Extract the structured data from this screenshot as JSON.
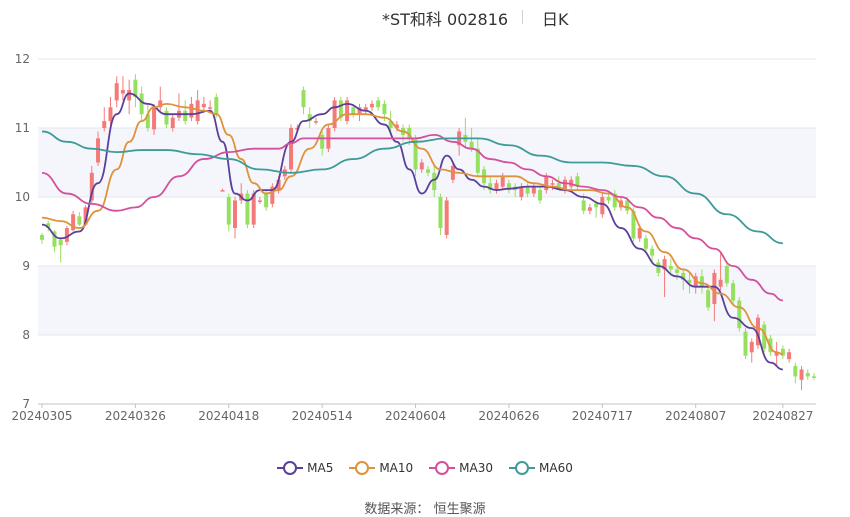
{
  "header": {
    "title": "*ST和科 002816",
    "subtitle": "日K"
  },
  "source": {
    "label": "数据来源：",
    "value": "恒生聚源"
  },
  "colors": {
    "up": "#f47a7a",
    "down": "#95e05e",
    "MA5": "#5b3f9b",
    "MA10": "#e0923b",
    "MA30": "#d4509b",
    "MA60": "#3f9a9a",
    "grid": "#e3e6ee",
    "band": "#f4f6fb"
  },
  "chart_data": {
    "type": "candlestick",
    "ylim": [
      7,
      12
    ],
    "yticks": [
      "7",
      "8",
      "9",
      "10",
      "11",
      "12"
    ],
    "xlabels": [
      "20240305",
      "20240326",
      "20240418",
      "20240514",
      "20240604",
      "20240626",
      "20240717",
      "20240807",
      "20240827"
    ],
    "xlabel_index": [
      0,
      15,
      30,
      45,
      60,
      75,
      90,
      105,
      119
    ],
    "legend": [
      "MA5",
      "MA10",
      "MA30",
      "MA60"
    ],
    "candles": [
      {
        "o": 9.45,
        "c": 9.38,
        "h": 9.48,
        "l": 9.32
      },
      {
        "o": 9.62,
        "c": 9.55,
        "h": 9.66,
        "l": 9.5
      },
      {
        "o": 9.5,
        "c": 9.28,
        "h": 9.52,
        "l": 9.2
      },
      {
        "o": 9.38,
        "c": 9.3,
        "h": 9.42,
        "l": 9.05
      },
      {
        "o": 9.35,
        "c": 9.55,
        "h": 9.58,
        "l": 9.3
      },
      {
        "o": 9.52,
        "c": 9.75,
        "h": 9.8,
        "l": 9.5
      },
      {
        "o": 9.72,
        "c": 9.6,
        "h": 9.78,
        "l": 9.58
      },
      {
        "o": 9.6,
        "c": 9.85,
        "h": 9.88,
        "l": 9.58
      },
      {
        "o": 9.95,
        "c": 10.35,
        "h": 10.45,
        "l": 9.9
      },
      {
        "o": 10.5,
        "c": 10.85,
        "h": 10.95,
        "l": 10.45
      },
      {
        "o": 11.0,
        "c": 11.1,
        "h": 11.3,
        "l": 10.95
      },
      {
        "o": 11.1,
        "c": 11.3,
        "h": 11.45,
        "l": 11.0
      },
      {
        "o": 11.4,
        "c": 11.65,
        "h": 11.75,
        "l": 11.3
      },
      {
        "o": 11.5,
        "c": 11.55,
        "h": 11.75,
        "l": 11.4
      },
      {
        "o": 11.4,
        "c": 11.55,
        "h": 11.7,
        "l": 11.2
      },
      {
        "o": 11.7,
        "c": 11.45,
        "h": 11.78,
        "l": 11.3
      },
      {
        "o": 11.5,
        "c": 11.2,
        "h": 11.6,
        "l": 11.1
      },
      {
        "o": 11.2,
        "c": 11.0,
        "h": 11.35,
        "l": 10.95
      },
      {
        "o": 10.98,
        "c": 11.3,
        "h": 11.35,
        "l": 10.9
      },
      {
        "o": 11.3,
        "c": 11.4,
        "h": 11.6,
        "l": 11.25
      },
      {
        "o": 11.25,
        "c": 11.05,
        "h": 11.3,
        "l": 11.0
      },
      {
        "o": 11.0,
        "c": 11.15,
        "h": 11.2,
        "l": 10.95
      },
      {
        "o": 11.15,
        "c": 11.25,
        "h": 11.5,
        "l": 11.1
      },
      {
        "o": 11.25,
        "c": 11.1,
        "h": 11.4,
        "l": 11.05
      },
      {
        "o": 11.15,
        "c": 11.35,
        "h": 11.45,
        "l": 11.1
      },
      {
        "o": 11.1,
        "c": 11.4,
        "h": 11.55,
        "l": 11.05
      },
      {
        "o": 11.3,
        "c": 11.35,
        "h": 11.45,
        "l": 11.25
      },
      {
        "o": 11.3,
        "c": 11.3,
        "h": 11.4,
        "l": 11.25
      },
      {
        "o": 11.45,
        "c": 11.2,
        "h": 11.5,
        "l": 11.15
      },
      {
        "o": 10.1,
        "c": 10.1,
        "h": 10.12,
        "l": 10.08
      },
      {
        "o": 10.0,
        "c": 9.6,
        "h": 10.05,
        "l": 9.5
      },
      {
        "o": 9.55,
        "c": 9.95,
        "h": 10.0,
        "l": 9.4
      },
      {
        "o": 9.95,
        "c": 10.05,
        "h": 10.2,
        "l": 9.9
      },
      {
        "o": 10.05,
        "c": 9.6,
        "h": 10.1,
        "l": 9.55
      },
      {
        "o": 9.6,
        "c": 10.05,
        "h": 10.1,
        "l": 9.55
      },
      {
        "o": 9.95,
        "c": 9.95,
        "h": 10.0,
        "l": 9.9
      },
      {
        "o": 10.05,
        "c": 9.85,
        "h": 10.1,
        "l": 9.8
      },
      {
        "o": 9.9,
        "c": 10.15,
        "h": 10.2,
        "l": 9.85
      },
      {
        "o": 10.1,
        "c": 10.25,
        "h": 10.3,
        "l": 10.05
      },
      {
        "o": 10.3,
        "c": 10.4,
        "h": 10.45,
        "l": 10.25
      },
      {
        "o": 10.4,
        "c": 11.0,
        "h": 11.05,
        "l": 10.35
      },
      {
        "o": 11.0,
        "c": 11.0,
        "h": 11.05,
        "l": 10.95
      },
      {
        "o": 11.55,
        "c": 11.3,
        "h": 11.6,
        "l": 11.2
      },
      {
        "o": 11.2,
        "c": 11.1,
        "h": 11.3,
        "l": 11.0
      },
      {
        "o": 11.1,
        "c": 11.1,
        "h": 11.15,
        "l": 11.05
      },
      {
        "o": 10.9,
        "c": 10.7,
        "h": 10.95,
        "l": 10.6
      },
      {
        "o": 10.7,
        "c": 11.0,
        "h": 11.05,
        "l": 10.65
      },
      {
        "o": 11.0,
        "c": 11.4,
        "h": 11.45,
        "l": 10.95
      },
      {
        "o": 11.4,
        "c": 11.15,
        "h": 11.45,
        "l": 11.1
      },
      {
        "o": 11.1,
        "c": 11.4,
        "h": 11.45,
        "l": 11.05
      },
      {
        "o": 11.3,
        "c": 11.2,
        "h": 11.35,
        "l": 11.15
      },
      {
        "o": 11.2,
        "c": 11.3,
        "h": 11.35,
        "l": 11.1
      },
      {
        "o": 11.25,
        "c": 11.3,
        "h": 11.35,
        "l": 11.2
      },
      {
        "o": 11.3,
        "c": 11.35,
        "h": 11.4,
        "l": 11.25
      },
      {
        "o": 11.4,
        "c": 11.3,
        "h": 11.45,
        "l": 11.25
      },
      {
        "o": 11.35,
        "c": 11.2,
        "h": 11.4,
        "l": 11.1
      },
      {
        "o": 11.1,
        "c": 11.0,
        "h": 11.25,
        "l": 10.9
      },
      {
        "o": 11.0,
        "c": 11.05,
        "h": 11.1,
        "l": 10.95
      },
      {
        "o": 11.0,
        "c": 10.9,
        "h": 11.05,
        "l": 10.8
      },
      {
        "o": 11.0,
        "c": 10.85,
        "h": 11.05,
        "l": 10.75
      },
      {
        "o": 10.85,
        "c": 10.4,
        "h": 10.9,
        "l": 10.3
      },
      {
        "o": 10.4,
        "c": 10.5,
        "h": 10.55,
        "l": 10.35
      },
      {
        "o": 10.4,
        "c": 10.35,
        "h": 10.45,
        "l": 10.3
      },
      {
        "o": 10.35,
        "c": 10.1,
        "h": 10.45,
        "l": 10.0
      },
      {
        "o": 10.0,
        "c": 9.55,
        "h": 10.05,
        "l": 9.45
      },
      {
        "o": 9.45,
        "c": 9.95,
        "h": 10.0,
        "l": 9.4
      },
      {
        "o": 10.25,
        "c": 10.45,
        "h": 10.5,
        "l": 10.2
      },
      {
        "o": 10.75,
        "c": 10.95,
        "h": 11.0,
        "l": 10.6
      },
      {
        "o": 10.9,
        "c": 10.8,
        "h": 11.15,
        "l": 10.7
      },
      {
        "o": 10.8,
        "c": 10.7,
        "h": 11.0,
        "l": 10.65
      },
      {
        "o": 10.7,
        "c": 10.35,
        "h": 10.85,
        "l": 10.3
      },
      {
        "o": 10.4,
        "c": 10.2,
        "h": 10.45,
        "l": 10.1
      },
      {
        "o": 10.2,
        "c": 10.1,
        "h": 10.3,
        "l": 10.05
      },
      {
        "o": 10.1,
        "c": 10.2,
        "h": 10.25,
        "l": 10.05
      },
      {
        "o": 10.15,
        "c": 10.3,
        "h": 10.35,
        "l": 10.1
      },
      {
        "o": 10.2,
        "c": 10.1,
        "h": 10.25,
        "l": 10.05
      },
      {
        "o": 10.15,
        "c": 10.1,
        "h": 10.2,
        "l": 10.0
      },
      {
        "o": 10.0,
        "c": 10.15,
        "h": 10.2,
        "l": 9.95
      },
      {
        "o": 10.15,
        "c": 10.05,
        "h": 10.2,
        "l": 10.0
      },
      {
        "o": 10.05,
        "c": 10.15,
        "h": 10.2,
        "l": 10.0
      },
      {
        "o": 10.1,
        "c": 9.95,
        "h": 10.15,
        "l": 9.9
      },
      {
        "o": 10.1,
        "c": 10.3,
        "h": 10.35,
        "l": 10.05
      },
      {
        "o": 10.2,
        "c": 10.2,
        "h": 10.25,
        "l": 10.1
      },
      {
        "o": 10.2,
        "c": 10.15,
        "h": 10.3,
        "l": 10.1
      },
      {
        "o": 10.1,
        "c": 10.25,
        "h": 10.3,
        "l": 10.05
      },
      {
        "o": 10.15,
        "c": 10.25,
        "h": 10.3,
        "l": 10.1
      },
      {
        "o": 10.3,
        "c": 10.15,
        "h": 10.35,
        "l": 10.1
      },
      {
        "o": 9.95,
        "c": 9.8,
        "h": 10.05,
        "l": 9.75
      },
      {
        "o": 9.8,
        "c": 9.85,
        "h": 9.9,
        "l": 9.75
      },
      {
        "o": 9.9,
        "c": 9.85,
        "h": 9.95,
        "l": 9.7
      },
      {
        "o": 9.75,
        "c": 10.0,
        "h": 10.05,
        "l": 9.7
      },
      {
        "o": 10.0,
        "c": 9.95,
        "h": 10.05,
        "l": 9.9
      },
      {
        "o": 10.05,
        "c": 9.85,
        "h": 10.1,
        "l": 9.8
      },
      {
        "o": 9.85,
        "c": 9.95,
        "h": 10.0,
        "l": 9.8
      },
      {
        "o": 9.95,
        "c": 9.8,
        "h": 10.0,
        "l": 9.75
      },
      {
        "o": 9.8,
        "c": 9.4,
        "h": 9.85,
        "l": 9.35
      },
      {
        "o": 9.4,
        "c": 9.55,
        "h": 9.6,
        "l": 9.35
      },
      {
        "o": 9.4,
        "c": 9.25,
        "h": 9.45,
        "l": 9.2
      },
      {
        "o": 9.25,
        "c": 9.15,
        "h": 9.3,
        "l": 9.05
      },
      {
        "o": 9.05,
        "c": 8.9,
        "h": 9.1,
        "l": 8.85
      },
      {
        "o": 8.95,
        "c": 9.1,
        "h": 9.15,
        "l": 8.55
      },
      {
        "o": 9.0,
        "c": 8.95,
        "h": 9.1,
        "l": 8.9
      },
      {
        "o": 8.95,
        "c": 8.9,
        "h": 9.0,
        "l": 8.8
      },
      {
        "o": 8.9,
        "c": 8.8,
        "h": 8.95,
        "l": 8.65
      },
      {
        "o": 8.8,
        "c": 8.75,
        "h": 8.9,
        "l": 8.6
      },
      {
        "o": 8.7,
        "c": 8.85,
        "h": 8.9,
        "l": 8.6
      },
      {
        "o": 8.85,
        "c": 8.7,
        "h": 8.95,
        "l": 8.6
      },
      {
        "o": 8.65,
        "c": 8.4,
        "h": 8.7,
        "l": 8.35
      },
      {
        "o": 8.45,
        "c": 8.9,
        "h": 8.95,
        "l": 8.2
      },
      {
        "o": 8.7,
        "c": 8.8,
        "h": 9.2,
        "l": 8.65
      },
      {
        "o": 9.0,
        "c": 8.75,
        "h": 9.05,
        "l": 8.7
      },
      {
        "o": 8.75,
        "c": 8.5,
        "h": 8.8,
        "l": 8.45
      },
      {
        "o": 8.5,
        "c": 8.1,
        "h": 8.55,
        "l": 8.05
      },
      {
        "o": 8.05,
        "c": 7.7,
        "h": 8.1,
        "l": 7.65
      },
      {
        "o": 7.75,
        "c": 7.9,
        "h": 7.95,
        "l": 7.6
      },
      {
        "o": 7.85,
        "c": 8.25,
        "h": 8.3,
        "l": 7.8
      },
      {
        "o": 8.15,
        "c": 7.8,
        "h": 8.2,
        "l": 7.75
      },
      {
        "o": 7.95,
        "c": 7.75,
        "h": 8.0,
        "l": 7.7
      },
      {
        "o": 7.7,
        "c": 7.75,
        "h": 7.9,
        "l": 7.55
      },
      {
        "o": 7.8,
        "c": 7.7,
        "h": 7.85,
        "l": 7.65
      },
      {
        "o": 7.65,
        "c": 7.75,
        "h": 7.8,
        "l": 7.6
      },
      {
        "o": 7.55,
        "c": 7.4,
        "h": 7.6,
        "l": 7.3
      },
      {
        "o": 7.35,
        "c": 7.5,
        "h": 7.55,
        "l": 7.2
      },
      {
        "o": 7.45,
        "c": 7.4,
        "h": 7.5,
        "l": 7.35
      },
      {
        "o": 7.4,
        "c": 7.38,
        "h": 7.45,
        "l": 7.35
      }
    ],
    "series": [
      {
        "name": "MA5",
        "x": [
          0,
          3,
          6,
          9,
          12,
          14,
          17,
          20,
          24,
          27,
          29,
          31,
          33,
          35,
          37,
          40,
          42,
          45,
          47,
          49,
          52,
          55,
          57,
          59,
          61,
          63,
          65,
          67,
          69,
          71,
          73,
          75,
          78,
          81,
          84,
          87,
          90,
          93,
          96,
          99,
          102,
          105,
          108,
          111,
          114,
          117,
          119
        ],
        "y": [
          9.6,
          9.4,
          9.5,
          10.2,
          11.2,
          11.5,
          11.35,
          11.2,
          11.2,
          11.25,
          10.8,
          10.05,
          9.95,
          10.1,
          10.1,
          10.8,
          11.1,
          11.2,
          11.3,
          11.35,
          11.25,
          11.05,
          10.8,
          10.4,
          10.05,
          10.25,
          10.6,
          10.4,
          10.25,
          10.15,
          10.1,
          10.12,
          10.15,
          10.15,
          10.1,
          10.0,
          9.9,
          9.55,
          9.25,
          9.0,
          8.85,
          8.7,
          8.7,
          8.25,
          8.1,
          7.6,
          7.5
        ]
      },
      {
        "name": "MA10",
        "x": [
          0,
          3,
          6,
          9,
          12,
          14,
          16,
          18,
          20,
          23,
          26,
          28,
          30,
          32,
          34,
          36,
          38,
          40,
          43,
          46,
          49,
          52,
          55,
          58,
          61,
          64,
          67,
          70,
          73,
          76,
          79,
          82,
          85,
          88,
          91,
          94,
          97,
          100,
          103,
          106,
          109,
          112,
          115,
          118,
          119
        ],
        "y": [
          9.7,
          9.65,
          9.55,
          9.8,
          10.4,
          10.8,
          11.1,
          11.3,
          11.35,
          11.3,
          11.25,
          11.2,
          10.9,
          10.55,
          10.2,
          10.05,
          10.1,
          10.3,
          10.7,
          11.05,
          11.2,
          11.2,
          11.15,
          10.95,
          10.7,
          10.4,
          10.35,
          10.3,
          10.3,
          10.3,
          10.2,
          10.15,
          10.1,
          10.1,
          10.05,
          9.85,
          9.5,
          9.2,
          8.95,
          8.75,
          8.6,
          8.4,
          8.1,
          7.75,
          7.72
        ]
      },
      {
        "name": "MA30",
        "x": [
          0,
          4,
          8,
          12,
          15,
          18,
          22,
          26,
          30,
          34,
          38,
          40,
          42,
          45,
          48,
          51,
          54,
          57,
          60,
          63,
          66,
          69,
          72,
          75,
          78,
          81,
          84,
          87,
          90,
          93,
          96,
          99,
          102,
          105,
          108,
          111,
          114,
          117,
          119
        ],
        "y": [
          10.35,
          10.05,
          9.9,
          9.8,
          9.85,
          10.0,
          10.3,
          10.55,
          10.65,
          10.7,
          10.7,
          10.78,
          10.85,
          10.85,
          10.85,
          10.85,
          10.85,
          10.85,
          10.85,
          10.9,
          10.8,
          10.7,
          10.55,
          10.5,
          10.4,
          10.3,
          10.2,
          10.15,
          10.1,
          10.0,
          9.85,
          9.7,
          9.55,
          9.4,
          9.25,
          9.0,
          8.8,
          8.6,
          8.5
        ]
      },
      {
        "name": "MA60",
        "x": [
          0,
          4,
          8,
          12,
          16,
          20,
          25,
          30,
          35,
          40,
          45,
          50,
          55,
          60,
          65,
          70,
          75,
          80,
          85,
          90,
          95,
          100,
          105,
          110,
          115,
          119
        ],
        "y": [
          10.95,
          10.8,
          10.7,
          10.65,
          10.68,
          10.68,
          10.62,
          10.55,
          10.4,
          10.35,
          10.4,
          10.55,
          10.7,
          10.8,
          10.85,
          10.85,
          10.75,
          10.6,
          10.5,
          10.5,
          10.45,
          10.3,
          10.05,
          9.75,
          9.5,
          9.33
        ]
      }
    ]
  }
}
